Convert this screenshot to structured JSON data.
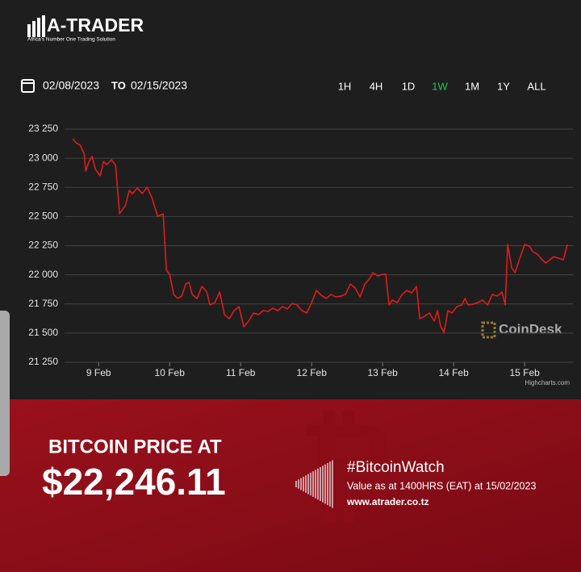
{
  "header": {
    "logo": "A-TRADER",
    "tagline": "Africa's Number One Trading Solution"
  },
  "range_selector": {
    "from": "02/08/2023",
    "to_label": "TO",
    "to": "02/15/2023",
    "buttons": [
      {
        "label": "1H",
        "active": false
      },
      {
        "label": "4H",
        "active": false
      },
      {
        "label": "1D",
        "active": false
      },
      {
        "label": "1W",
        "active": true
      },
      {
        "label": "1M",
        "active": false
      },
      {
        "label": "1Y",
        "active": false
      },
      {
        "label": "ALL",
        "active": false
      }
    ]
  },
  "chart_data": {
    "type": "line",
    "color": "#e21b1b",
    "grid": true,
    "watermark": "CoinDesk",
    "credit": "Highcharts.com",
    "xlim": [
      8.52,
      15.68
    ],
    "xticks": [
      {
        "value": 9,
        "label": "9 Feb"
      },
      {
        "value": 10,
        "label": "10 Feb"
      },
      {
        "value": 11,
        "label": "11 Feb"
      },
      {
        "value": 12,
        "label": "12 Feb"
      },
      {
        "value": 13,
        "label": "13 Feb"
      },
      {
        "value": 14,
        "label": "14 Feb"
      },
      {
        "value": 15,
        "label": "15 Feb"
      }
    ],
    "ylim": [
      21250,
      23250
    ],
    "yticks": [
      {
        "value": 21250,
        "label": "21 250"
      },
      {
        "value": 21500,
        "label": "21 500"
      },
      {
        "value": 21750,
        "label": "21 750"
      },
      {
        "value": 22000,
        "label": "22 000"
      },
      {
        "value": 22250,
        "label": "22 250"
      },
      {
        "value": 22500,
        "label": "22 500"
      },
      {
        "value": 22750,
        "label": "22 750"
      },
      {
        "value": 23000,
        "label": "23 000"
      },
      {
        "value": 23250,
        "label": "23 250"
      }
    ],
    "x": [
      8.636,
      8.682,
      8.739,
      8.795,
      8.818,
      8.864,
      8.909,
      8.955,
      9.023,
      9.068,
      9.114,
      9.182,
      9.239,
      9.295,
      9.375,
      9.432,
      9.477,
      9.545,
      9.614,
      9.682,
      9.75,
      9.83,
      9.909,
      9.955,
      10.0,
      10.057,
      10.114,
      10.17,
      10.227,
      10.273,
      10.318,
      10.386,
      10.455,
      10.523,
      10.568,
      10.636,
      10.705,
      10.773,
      10.841,
      10.909,
      10.977,
      11.045,
      11.114,
      11.182,
      11.25,
      11.318,
      11.386,
      11.455,
      11.523,
      11.591,
      11.659,
      11.727,
      11.795,
      11.864,
      11.932,
      12.0,
      12.068,
      12.136,
      12.205,
      12.273,
      12.341,
      12.409,
      12.477,
      12.545,
      12.614,
      12.682,
      12.75,
      12.818,
      12.864,
      12.932,
      13.0,
      13.045,
      13.091,
      13.136,
      13.205,
      13.273,
      13.341,
      13.409,
      13.477,
      13.523,
      13.591,
      13.659,
      13.727,
      13.773,
      13.818,
      13.864,
      13.92,
      13.977,
      14.045,
      14.114,
      14.159,
      14.205,
      14.273,
      14.341,
      14.409,
      14.477,
      14.545,
      14.614,
      14.682,
      14.727,
      14.761,
      14.818,
      14.864,
      14.932,
      15.0,
      15.068,
      15.114,
      15.182,
      15.227,
      15.295,
      15.341,
      15.409,
      15.477,
      15.545,
      15.602
    ],
    "values": [
      23167,
      23132,
      23112,
      23042,
      22890,
      22973,
      23015,
      22904,
      22849,
      22973,
      22945,
      22987,
      22938,
      22523,
      22593,
      22724,
      22696,
      22745,
      22696,
      22752,
      22662,
      22502,
      22523,
      22039,
      22004,
      21831,
      21797,
      21817,
      21921,
      21935,
      21831,
      21797,
      21901,
      21852,
      21741,
      21762,
      21852,
      21658,
      21624,
      21693,
      21727,
      21554,
      21603,
      21672,
      21658,
      21693,
      21686,
      21714,
      21693,
      21727,
      21707,
      21755,
      21741,
      21693,
      21672,
      21762,
      21866,
      21824,
      21797,
      21831,
      21810,
      21817,
      21831,
      21921,
      21886,
      21810,
      21921,
      21970,
      22018,
      21990,
      22004,
      22004,
      21741,
      21783,
      21762,
      21831,
      21866,
      21845,
      21901,
      21624,
      21644,
      21672,
      21603,
      21693,
      21554,
      21506,
      21693,
      21672,
      21727,
      21741,
      21797,
      21741,
      21748,
      21762,
      21783,
      21741,
      21831,
      21817,
      21852,
      21741,
      22260,
      22060,
      22018,
      22143,
      22260,
      22246,
      22198,
      22177,
      22143,
      22101,
      22122,
      22156,
      22143,
      22129,
      22260
    ]
  },
  "banner": {
    "heading": "BITCOIN PRICE AT",
    "price": "$22,246.11",
    "hashtag": "#BitcoinWatch",
    "note": "Value as at 1400HRS (EAT) at 15/02/2023",
    "url": "www.atrader.co.tz"
  }
}
